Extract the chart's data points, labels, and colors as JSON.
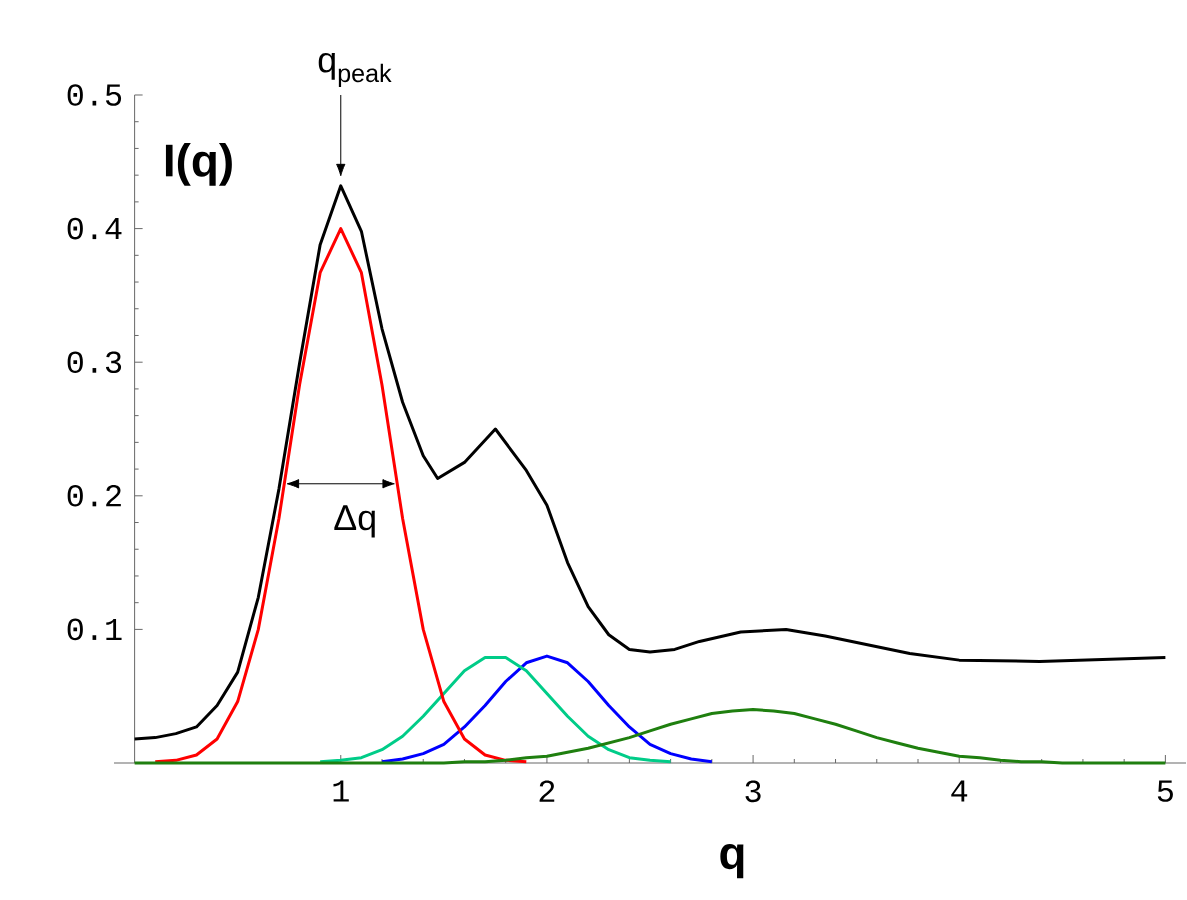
{
  "chart_data": {
    "type": "line",
    "xlabel": "q",
    "ylabel": "I(q)",
    "x": [
      0,
      0.1,
      0.2,
      0.3,
      0.4,
      0.5,
      0.6,
      0.7,
      0.8,
      0.9,
      1.0,
      1.1,
      1.2,
      1.3,
      1.4,
      1.5,
      1.6,
      1.7,
      1.8,
      1.9,
      2.0,
      2.1,
      2.2,
      2.3,
      2.4,
      2.5,
      2.6,
      2.7,
      2.8,
      2.9,
      3.0,
      3.1,
      3.2,
      3.3,
      3.4,
      3.5,
      3.6,
      3.7,
      3.8,
      3.9,
      4.0,
      4.1,
      4.2,
      4.3,
      4.4,
      4.5,
      4.6,
      4.7,
      4.8,
      4.9,
      5.0
    ],
    "series": [
      {
        "color": "#0000ff",
        "values": [
          null,
          null,
          null,
          null,
          null,
          null,
          null,
          null,
          null,
          null,
          null,
          null,
          0.001,
          0.003,
          0.007,
          0.014,
          0.027,
          0.043,
          0.061,
          0.075,
          0.08,
          0.075,
          0.061,
          0.043,
          0.027,
          0.014,
          0.007,
          0.003,
          0.001,
          null,
          null,
          null,
          null,
          null,
          null,
          null,
          null,
          null,
          null,
          null,
          null,
          null,
          null,
          null,
          null,
          null,
          null,
          null,
          null,
          null,
          null
        ]
      },
      {
        "color": "#00cc88",
        "values": [
          null,
          null,
          null,
          null,
          null,
          null,
          null,
          null,
          null,
          0.001,
          0.002,
          0.004,
          0.01,
          0.02,
          0.035,
          0.052,
          0.069,
          0.079,
          0.079,
          0.069,
          0.052,
          0.035,
          0.02,
          0.01,
          0.004,
          0.002,
          0.001,
          null,
          null,
          null,
          null,
          null,
          null,
          null,
          null,
          null,
          null,
          null,
          null,
          null,
          null,
          null,
          null,
          null,
          null,
          null,
          null,
          null,
          null,
          null,
          null
        ]
      },
      {
        "color": "#ff0000",
        "values": [
          null,
          0.001,
          0.002,
          0.006,
          0.018,
          0.046,
          0.1,
          0.183,
          0.283,
          0.367,
          0.4,
          0.367,
          0.283,
          0.183,
          0.1,
          0.046,
          0.018,
          0.006,
          0.002,
          0.001,
          null,
          null,
          null,
          null,
          null,
          null,
          null,
          null,
          null,
          null,
          null,
          null,
          null,
          null,
          null,
          null,
          null,
          null,
          null,
          null,
          null,
          null,
          null,
          null,
          null,
          null,
          null,
          null,
          null,
          null,
          null
        ]
      },
      {
        "color": "#1f7f0f",
        "values": [
          0,
          0,
          0,
          0,
          0,
          0,
          0,
          0,
          0,
          0,
          0,
          0,
          0,
          0,
          0,
          0,
          0.001,
          0.001,
          0.002,
          0.004,
          0.005,
          0.008,
          0.011,
          0.015,
          0.019,
          0.024,
          0.029,
          0.033,
          0.037,
          0.039,
          0.04,
          0.039,
          0.037,
          0.033,
          0.029,
          0.024,
          0.019,
          0.015,
          0.011,
          0.008,
          0.005,
          0.004,
          0.002,
          0.001,
          0.001,
          0,
          0,
          0,
          0,
          0,
          0
        ]
      },
      {
        "color": "#000000",
        "x": [
          0,
          0.1,
          0.2,
          0.3,
          0.4,
          0.5,
          0.6,
          0.7,
          0.8,
          0.9,
          1.0,
          1.1,
          1.2,
          1.3,
          1.4,
          1.47,
          1.6,
          1.75,
          1.9,
          2.0,
          2.1,
          2.2,
          2.3,
          2.4,
          2.5,
          2.62,
          2.74,
          2.94,
          3.16,
          3.35,
          3.76,
          4.0,
          4.39,
          5.0
        ],
        "values": [
          0.018,
          0.019,
          0.022,
          0.027,
          0.043,
          0.068,
          0.124,
          0.205,
          0.299,
          0.388,
          0.432,
          0.398,
          0.325,
          0.27,
          0.23,
          0.213,
          0.225,
          0.25,
          0.219,
          0.193,
          0.15,
          0.117,
          0.096,
          0.085,
          0.083,
          0.085,
          0.091,
          0.098,
          0.1,
          0.095,
          0.082,
          0.077,
          0.076,
          0.079
        ]
      }
    ],
    "xlim": [
      -0.1,
      5.1
    ],
    "ylim": [
      0,
      0.5
    ],
    "xticks": [
      1,
      2,
      3,
      4,
      5
    ],
    "yticks": [
      0.1,
      0.2,
      0.3,
      0.4,
      0.5
    ],
    "annotations": [
      {
        "text": "q$_{peak}$",
        "x": 1,
        "y": 0.432
      },
      "Δq"
    ],
    "grid": false,
    "marker": "none",
    "line_style": "solid"
  }
}
